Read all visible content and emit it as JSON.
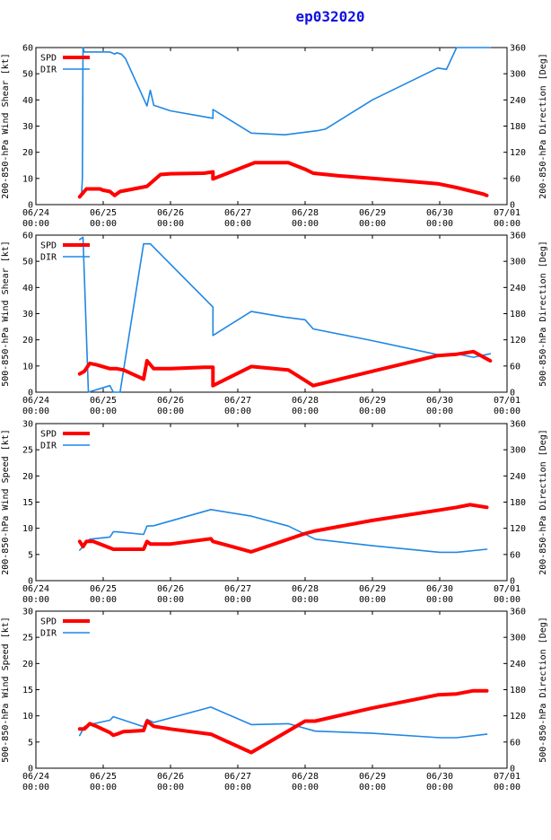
{
  "title": "ep032020",
  "colors": {
    "spd": "#ff0000",
    "dir": "#1f87e5",
    "title": "#1010e0",
    "axis": "#000000"
  },
  "x_ticks": [
    {
      "t": 0,
      "label": "06/24",
      "sub": "00:00"
    },
    {
      "t": 1,
      "label": "06/25",
      "sub": "00:00"
    },
    {
      "t": 2,
      "label": "06/26",
      "sub": "00:00"
    },
    {
      "t": 3,
      "label": "06/27",
      "sub": "00:00"
    },
    {
      "t": 4,
      "label": "06/28",
      "sub": "00:00"
    },
    {
      "t": 5,
      "label": "06/29",
      "sub": "00:00"
    },
    {
      "t": 6,
      "label": "06/30",
      "sub": "00:00"
    },
    {
      "t": 7,
      "label": "07/01",
      "sub": "00:00"
    }
  ],
  "chart_data": [
    {
      "type": "line",
      "ylabel": "200-850-hPa Wind Shear [kt]",
      "y2label": "200-850-hPa Direction [Deg]",
      "ylim": [
        0,
        60
      ],
      "y2lim": [
        0,
        360
      ],
      "yticks": [
        0,
        10,
        20,
        30,
        40,
        50,
        60
      ],
      "y2ticks": [
        0,
        60,
        120,
        180,
        240,
        300,
        360
      ],
      "legend": [
        "SPD",
        "DIR"
      ],
      "series": [
        {
          "name": "SPD",
          "axis": "left",
          "x": [
            0.65,
            0.75,
            0.95,
            1.0,
            1.1,
            1.17,
            1.25,
            1.35,
            1.65,
            1.85,
            2.0,
            2.5,
            2.63,
            2.63,
            3.25,
            3.75,
            4.0,
            4.12,
            4.5,
            5.0,
            5.5,
            5.97,
            6.25,
            6.65,
            6.7
          ],
          "values": [
            3,
            6,
            6,
            5.5,
            5,
            3.5,
            5,
            5.5,
            7,
            11.5,
            11.8,
            12,
            12.5,
            9.8,
            16,
            16,
            13.5,
            12,
            11,
            10,
            9,
            8,
            6.5,
            4,
            3.5
          ]
        },
        {
          "name": "DIR",
          "axis": "right",
          "x": [
            0.65,
            0.68,
            0.69,
            0.7,
            0.72,
            0.8,
            0.9,
            1.1,
            1.17,
            1.2,
            1.27,
            1.33,
            1.65,
            1.7,
            1.75,
            2.0,
            2.63,
            2.63,
            3.2,
            3.7,
            4.2,
            4.3,
            5.0,
            5.97,
            6.1,
            6.25,
            6.75
          ],
          "values": [
            18,
            28,
            60,
            360,
            350,
            350,
            350,
            350,
            345,
            348,
            345,
            335,
            226,
            262,
            228,
            215,
            198,
            218,
            164,
            160,
            170,
            173,
            240,
            313,
            310,
            360,
            360
          ]
        }
      ]
    },
    {
      "type": "line",
      "ylabel": "500-850-hPa Wind Shear [kt]",
      "y2label": "500-850-hPa Direction [Deg]",
      "ylim": [
        0,
        60
      ],
      "y2lim": [
        0,
        360
      ],
      "yticks": [
        0,
        10,
        20,
        30,
        40,
        50,
        60
      ],
      "y2ticks": [
        0,
        60,
        120,
        180,
        240,
        300,
        360
      ],
      "legend": [
        "SPD",
        "DIR"
      ],
      "series": [
        {
          "name": "SPD",
          "axis": "left",
          "x": [
            0.65,
            0.72,
            0.8,
            0.9,
            1.1,
            1.2,
            1.3,
            1.6,
            1.65,
            1.75,
            2.0,
            2.5,
            2.63,
            2.63,
            3.2,
            3.75,
            4.0,
            4.12,
            5.0,
            5.97,
            6.25,
            6.5,
            6.75
          ],
          "values": [
            7,
            8,
            11,
            10.5,
            9,
            9,
            8.5,
            5,
            12,
            9,
            9,
            9.5,
            9.5,
            2.5,
            9.8,
            8.5,
            4.5,
            2.5,
            8,
            14,
            14.5,
            15.5,
            12
          ]
        },
        {
          "name": "DIR",
          "axis": "right",
          "x": [
            0.65,
            0.7,
            0.78,
            1.1,
            1.15,
            1.25,
            1.6,
            1.7,
            2.63,
            2.63,
            3.2,
            3.7,
            4.0,
            4.12,
            5.0,
            6.0,
            6.25,
            6.5,
            6.75
          ],
          "values": [
            350,
            355,
            0,
            15,
            0,
            0,
            340,
            340,
            195,
            130,
            185,
            172,
            166,
            145,
            118,
            85,
            88,
            80,
            88
          ]
        }
      ]
    },
    {
      "type": "line",
      "ylabel": "200-850-hPa Wind Speed [kt]",
      "y2label": "200-850-hPa Direction [Deg]",
      "ylim": [
        0,
        30
      ],
      "y2lim": [
        0,
        360
      ],
      "yticks": [
        0,
        5,
        10,
        15,
        20,
        25,
        30
      ],
      "y2ticks": [
        0,
        60,
        120,
        180,
        240,
        300,
        360
      ],
      "legend": [
        "SPD",
        "DIR"
      ],
      "series": [
        {
          "name": "SPD",
          "axis": "left",
          "x": [
            0.65,
            0.7,
            0.75,
            0.85,
            1.15,
            1.3,
            1.6,
            1.65,
            1.7,
            1.8,
            2.0,
            2.6,
            2.63,
            3.2,
            4.0,
            4.15,
            5.0,
            6.0,
            6.25,
            6.45,
            6.7
          ],
          "values": [
            7.5,
            6.5,
            7.5,
            7.5,
            6,
            6,
            6,
            7.5,
            7,
            7,
            7,
            8,
            7.5,
            5.5,
            9,
            9.5,
            11.5,
            13.5,
            14,
            14.5,
            14
          ]
        },
        {
          "name": "DIR",
          "axis": "right",
          "x": [
            0.65,
            0.8,
            1.1,
            1.15,
            1.2,
            1.6,
            1.65,
            1.75,
            2.6,
            3.2,
            3.75,
            4.15,
            5.0,
            6.0,
            6.25,
            6.7
          ],
          "values": [
            70,
            95,
            100,
            112,
            112,
            106,
            125,
            126,
            163,
            148,
            125,
            95,
            80,
            65,
            65,
            72
          ]
        }
      ]
    },
    {
      "type": "line",
      "ylabel": "500-850-hPa Wind Speed [kt]",
      "y2label": "500-850-hPa Direction [Deg]",
      "ylim": [
        0,
        30
      ],
      "y2lim": [
        0,
        360
      ],
      "yticks": [
        0,
        5,
        10,
        15,
        20,
        25,
        30
      ],
      "y2ticks": [
        0,
        60,
        120,
        180,
        240,
        300,
        360
      ],
      "legend": [
        "SPD",
        "DIR"
      ],
      "series": [
        {
          "name": "SPD",
          "axis": "left",
          "x": [
            0.65,
            0.72,
            0.8,
            0.9,
            1.1,
            1.15,
            1.2,
            1.3,
            1.6,
            1.65,
            1.75,
            2.0,
            2.6,
            3.2,
            4.0,
            4.15,
            5.0,
            5.97,
            6.25,
            6.5,
            6.7
          ],
          "values": [
            7.5,
            7.5,
            8.5,
            8,
            6.8,
            6.3,
            6.5,
            7,
            7.2,
            9,
            8,
            7.5,
            6.5,
            3,
            9,
            9,
            11.5,
            14,
            14.2,
            14.8,
            14.8
          ]
        },
        {
          "name": "DIR",
          "axis": "right",
          "x": [
            0.65,
            0.72,
            0.8,
            1.1,
            1.15,
            1.6,
            1.65,
            1.75,
            2.6,
            3.2,
            3.75,
            4.15,
            5.0,
            6.0,
            6.25,
            6.7
          ],
          "values": [
            75,
            95,
            100,
            110,
            118,
            95,
            112,
            105,
            140,
            100,
            102,
            85,
            80,
            70,
            70,
            78
          ]
        }
      ]
    }
  ]
}
